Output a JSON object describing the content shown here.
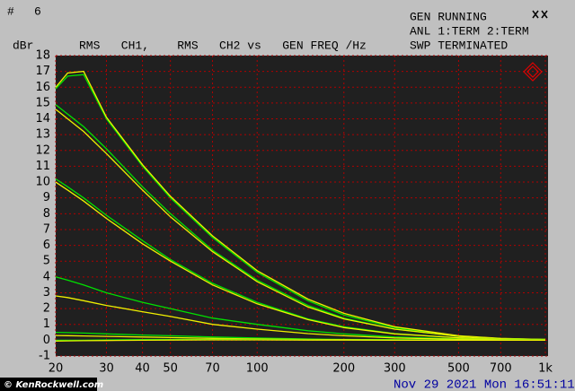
{
  "chart_data": {
    "type": "line",
    "header": {
      "number_label": "#",
      "number": "6",
      "status": "GEN RUNNING",
      "analyzer": "ANL 1:TERM 2:TERM",
      "sweep": "SWP TERMINATED"
    },
    "y_label": "dBr",
    "title": "RMS   CH1,    RMS   CH2 vs   GEN FREQ /Hz",
    "watermark": "© KenRockwell.com",
    "timestamp": "Nov 29 2021 Mon 16:51:11",
    "x": [
      20,
      22,
      25,
      30,
      40,
      50,
      70,
      100,
      150,
      200,
      300,
      500,
      700,
      1000
    ],
    "series": [
      {
        "color": "#00e000",
        "values": [
          15.9,
          16.7,
          16.8,
          14.0,
          11.0,
          9.0,
          6.5,
          4.3,
          2.5,
          1.6,
          0.8,
          0.25,
          0.1,
          0.05
        ]
      },
      {
        "color": "#f0f000",
        "values": [
          16.0,
          16.9,
          17.0,
          14.1,
          11.1,
          9.1,
          6.6,
          4.4,
          2.6,
          1.7,
          0.85,
          0.28,
          0.12,
          0.05
        ]
      },
      {
        "color": "#00e000",
        "values": [
          14.9,
          14.3,
          13.5,
          12.1,
          9.7,
          8.0,
          5.7,
          3.8,
          2.2,
          1.4,
          0.7,
          0.25,
          0.1,
          0.05
        ]
      },
      {
        "color": "#f0f000",
        "values": [
          14.6,
          14.0,
          13.2,
          11.8,
          9.5,
          7.8,
          5.6,
          3.7,
          2.1,
          1.35,
          0.7,
          0.25,
          0.1,
          0.05
        ]
      },
      {
        "color": "#00e000",
        "values": [
          10.2,
          9.7,
          9.0,
          7.9,
          6.3,
          5.1,
          3.6,
          2.4,
          1.35,
          0.85,
          0.42,
          0.15,
          0.07,
          0.03
        ]
      },
      {
        "color": "#f0f000",
        "values": [
          10.0,
          9.5,
          8.8,
          7.7,
          6.1,
          5.0,
          3.5,
          2.3,
          1.3,
          0.8,
          0.4,
          0.15,
          0.07,
          0.03
        ]
      },
      {
        "color": "#00e000",
        "values": [
          4.0,
          3.8,
          3.5,
          3.0,
          2.4,
          2.0,
          1.4,
          1.0,
          0.6,
          0.4,
          0.2,
          0.08,
          0.04,
          0.02
        ]
      },
      {
        "color": "#f0f000",
        "values": [
          2.8,
          2.7,
          2.5,
          2.2,
          1.8,
          1.5,
          1.0,
          0.7,
          0.42,
          0.28,
          0.14,
          0.06,
          0.03,
          0.01
        ]
      },
      {
        "color": "#00e000",
        "values": [
          0.5,
          0.48,
          0.45,
          0.4,
          0.33,
          0.28,
          0.2,
          0.14,
          0.08,
          0.05,
          0.03,
          0.01,
          0.0,
          0.0
        ]
      },
      {
        "color": "#f0f000",
        "values": [
          0.3,
          0.29,
          0.27,
          0.24,
          0.2,
          0.17,
          0.12,
          0.08,
          0.05,
          0.03,
          0.02,
          0.01,
          0.0,
          0.0
        ]
      },
      {
        "color": "#00e000",
        "values": [
          0.0,
          0.0,
          0.0,
          0.02,
          0.04,
          0.05,
          0.05,
          0.04,
          0.03,
          0.02,
          0.01,
          0.0,
          0.0,
          0.0
        ]
      },
      {
        "color": "#f0f000",
        "values": [
          -0.05,
          -0.04,
          -0.03,
          -0.02,
          0.0,
          0.01,
          0.02,
          0.02,
          0.01,
          0.01,
          0.0,
          0.0,
          0.0,
          0.0
        ]
      }
    ],
    "xlim": [
      20,
      1000
    ],
    "log_x": true,
    "xticks": [
      20,
      30,
      40,
      50,
      70,
      100,
      200,
      300,
      500,
      700,
      {
        "value": 1000,
        "label": "1k"
      }
    ],
    "ylim": [
      -1,
      18
    ],
    "yticks": [
      -1,
      0,
      1,
      2,
      3,
      4,
      5,
      6,
      7,
      8,
      9,
      10,
      11,
      12,
      13,
      14,
      15,
      16,
      17,
      18
    ],
    "grid": true,
    "grid_color": "#b00000",
    "plot_background": "#202020"
  }
}
